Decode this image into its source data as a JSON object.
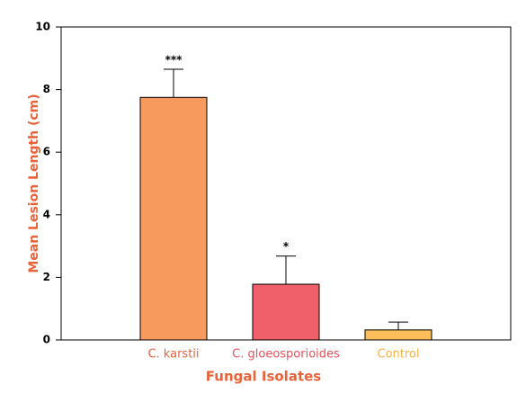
{
  "chart_data": {
    "type": "bar",
    "categories": [
      "C. karstii",
      "C. gloeosporioides",
      "Control"
    ],
    "values": [
      7.75,
      1.78,
      0.32
    ],
    "errors": [
      0.9,
      0.9,
      0.25
    ],
    "annotations": [
      "***",
      "*",
      null
    ],
    "colors": [
      "#f79a5e",
      "#f0606a",
      "#fbbe5a"
    ],
    "label_colors": [
      "#e8623a",
      "#e8505a",
      "#f5b342"
    ],
    "xlabel": "Fungal Isolates",
    "ylabel": "Mean Lesion Length (cm)",
    "ylim": [
      0,
      10
    ],
    "yticks": [
      0,
      2,
      4,
      6,
      8,
      10
    ]
  }
}
